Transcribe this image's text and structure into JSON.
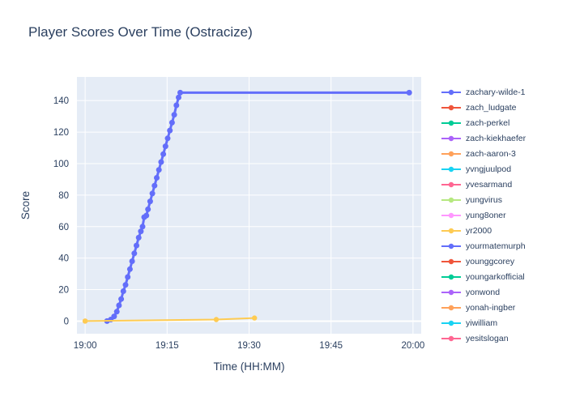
{
  "title": "Player Scores Over Time (Ostracize)",
  "chart_data": {
    "type": "line",
    "title": "Player Scores Over Time (Ostracize)",
    "xlabel": "Time (HH:MM)",
    "ylabel": "Score",
    "x_tick_labels": [
      "19:00",
      "19:15",
      "19:30",
      "19:45",
      "20:00"
    ],
    "x_tick_minutes": [
      0,
      15,
      30,
      45,
      60
    ],
    "y_ticks": [
      0,
      20,
      40,
      60,
      80,
      100,
      120,
      140
    ],
    "x_range_minutes": [
      -1.5,
      61.5
    ],
    "y_range": [
      -8,
      155
    ],
    "grid": true,
    "legend_position": "right",
    "plot_bg": "#E5ECF6",
    "grid_color": "#ffffff",
    "axis_color": "#2a3f5f",
    "series": [
      {
        "name": "zachary-wilde-1",
        "color": "#636EFA",
        "line_width": 3,
        "marker_size": 3.5,
        "points": [
          [
            4,
            0
          ],
          [
            4.7,
            1
          ],
          [
            5.3,
            3
          ],
          [
            5.8,
            6
          ],
          [
            6.2,
            10
          ],
          [
            6.6,
            14
          ],
          [
            7,
            19
          ],
          [
            7.4,
            23
          ],
          [
            7.8,
            28
          ],
          [
            8.2,
            33
          ],
          [
            8.6,
            38
          ],
          [
            9,
            43
          ],
          [
            9.4,
            48
          ],
          [
            9.8,
            53
          ],
          [
            10.2,
            57
          ],
          [
            10.5,
            60
          ],
          [
            10.8,
            66
          ],
          [
            11.2,
            67
          ],
          [
            11.5,
            71
          ],
          [
            11.9,
            76
          ],
          [
            12.3,
            81
          ],
          [
            12.7,
            86
          ],
          [
            13.1,
            91
          ],
          [
            13.5,
            96
          ],
          [
            13.9,
            101
          ],
          [
            14.3,
            106
          ],
          [
            14.7,
            111
          ],
          [
            15.1,
            116
          ],
          [
            15.5,
            121
          ],
          [
            15.9,
            126
          ],
          [
            16.3,
            131
          ],
          [
            16.7,
            137
          ],
          [
            17.1,
            142
          ],
          [
            17.4,
            145
          ],
          [
            59.3,
            145
          ]
        ]
      },
      {
        "name": "zach_ludgate",
        "color": "#EF553B",
        "line_width": 2,
        "marker_size": 3,
        "points": []
      },
      {
        "name": "zach-perkel",
        "color": "#00CC96",
        "line_width": 2,
        "marker_size": 3,
        "points": []
      },
      {
        "name": "zach-kiekhaefer",
        "color": "#AB63FA",
        "line_width": 2,
        "marker_size": 3,
        "points": []
      },
      {
        "name": "zach-aaron-3",
        "color": "#FFA15A",
        "line_width": 2,
        "marker_size": 3.2,
        "points": [
          [
            0,
            0
          ]
        ]
      },
      {
        "name": "yvngjuulpod",
        "color": "#19D3F3",
        "line_width": 2,
        "marker_size": 3,
        "points": []
      },
      {
        "name": "yvesarmand",
        "color": "#FF6692",
        "line_width": 2,
        "marker_size": 3,
        "points": []
      },
      {
        "name": "yungvirus",
        "color": "#B6E880",
        "line_width": 2,
        "marker_size": 3,
        "points": []
      },
      {
        "name": "yung8oner",
        "color": "#FF97FF",
        "line_width": 2,
        "marker_size": 3,
        "points": []
      },
      {
        "name": "yr2000",
        "color": "#FECB52",
        "line_width": 2,
        "marker_size": 3.2,
        "points": [
          [
            0,
            0
          ],
          [
            24,
            1
          ],
          [
            31,
            2
          ]
        ]
      },
      {
        "name": "yourmatemurph",
        "color": "#636EFA",
        "line_width": 2,
        "marker_size": 3,
        "points": []
      },
      {
        "name": "younggcorey",
        "color": "#EF553B",
        "line_width": 2,
        "marker_size": 3,
        "points": []
      },
      {
        "name": "youngarkofficial",
        "color": "#00CC96",
        "line_width": 2,
        "marker_size": 3,
        "points": []
      },
      {
        "name": "yonwond",
        "color": "#AB63FA",
        "line_width": 2,
        "marker_size": 3,
        "points": []
      },
      {
        "name": "yonah-ingber",
        "color": "#FFA15A",
        "line_width": 2,
        "marker_size": 3,
        "points": []
      },
      {
        "name": "yiwilliam",
        "color": "#19D3F3",
        "line_width": 2,
        "marker_size": 3,
        "points": []
      },
      {
        "name": "yesitslogan",
        "color": "#FF6692",
        "line_width": 2,
        "marker_size": 3,
        "points": []
      }
    ]
  }
}
